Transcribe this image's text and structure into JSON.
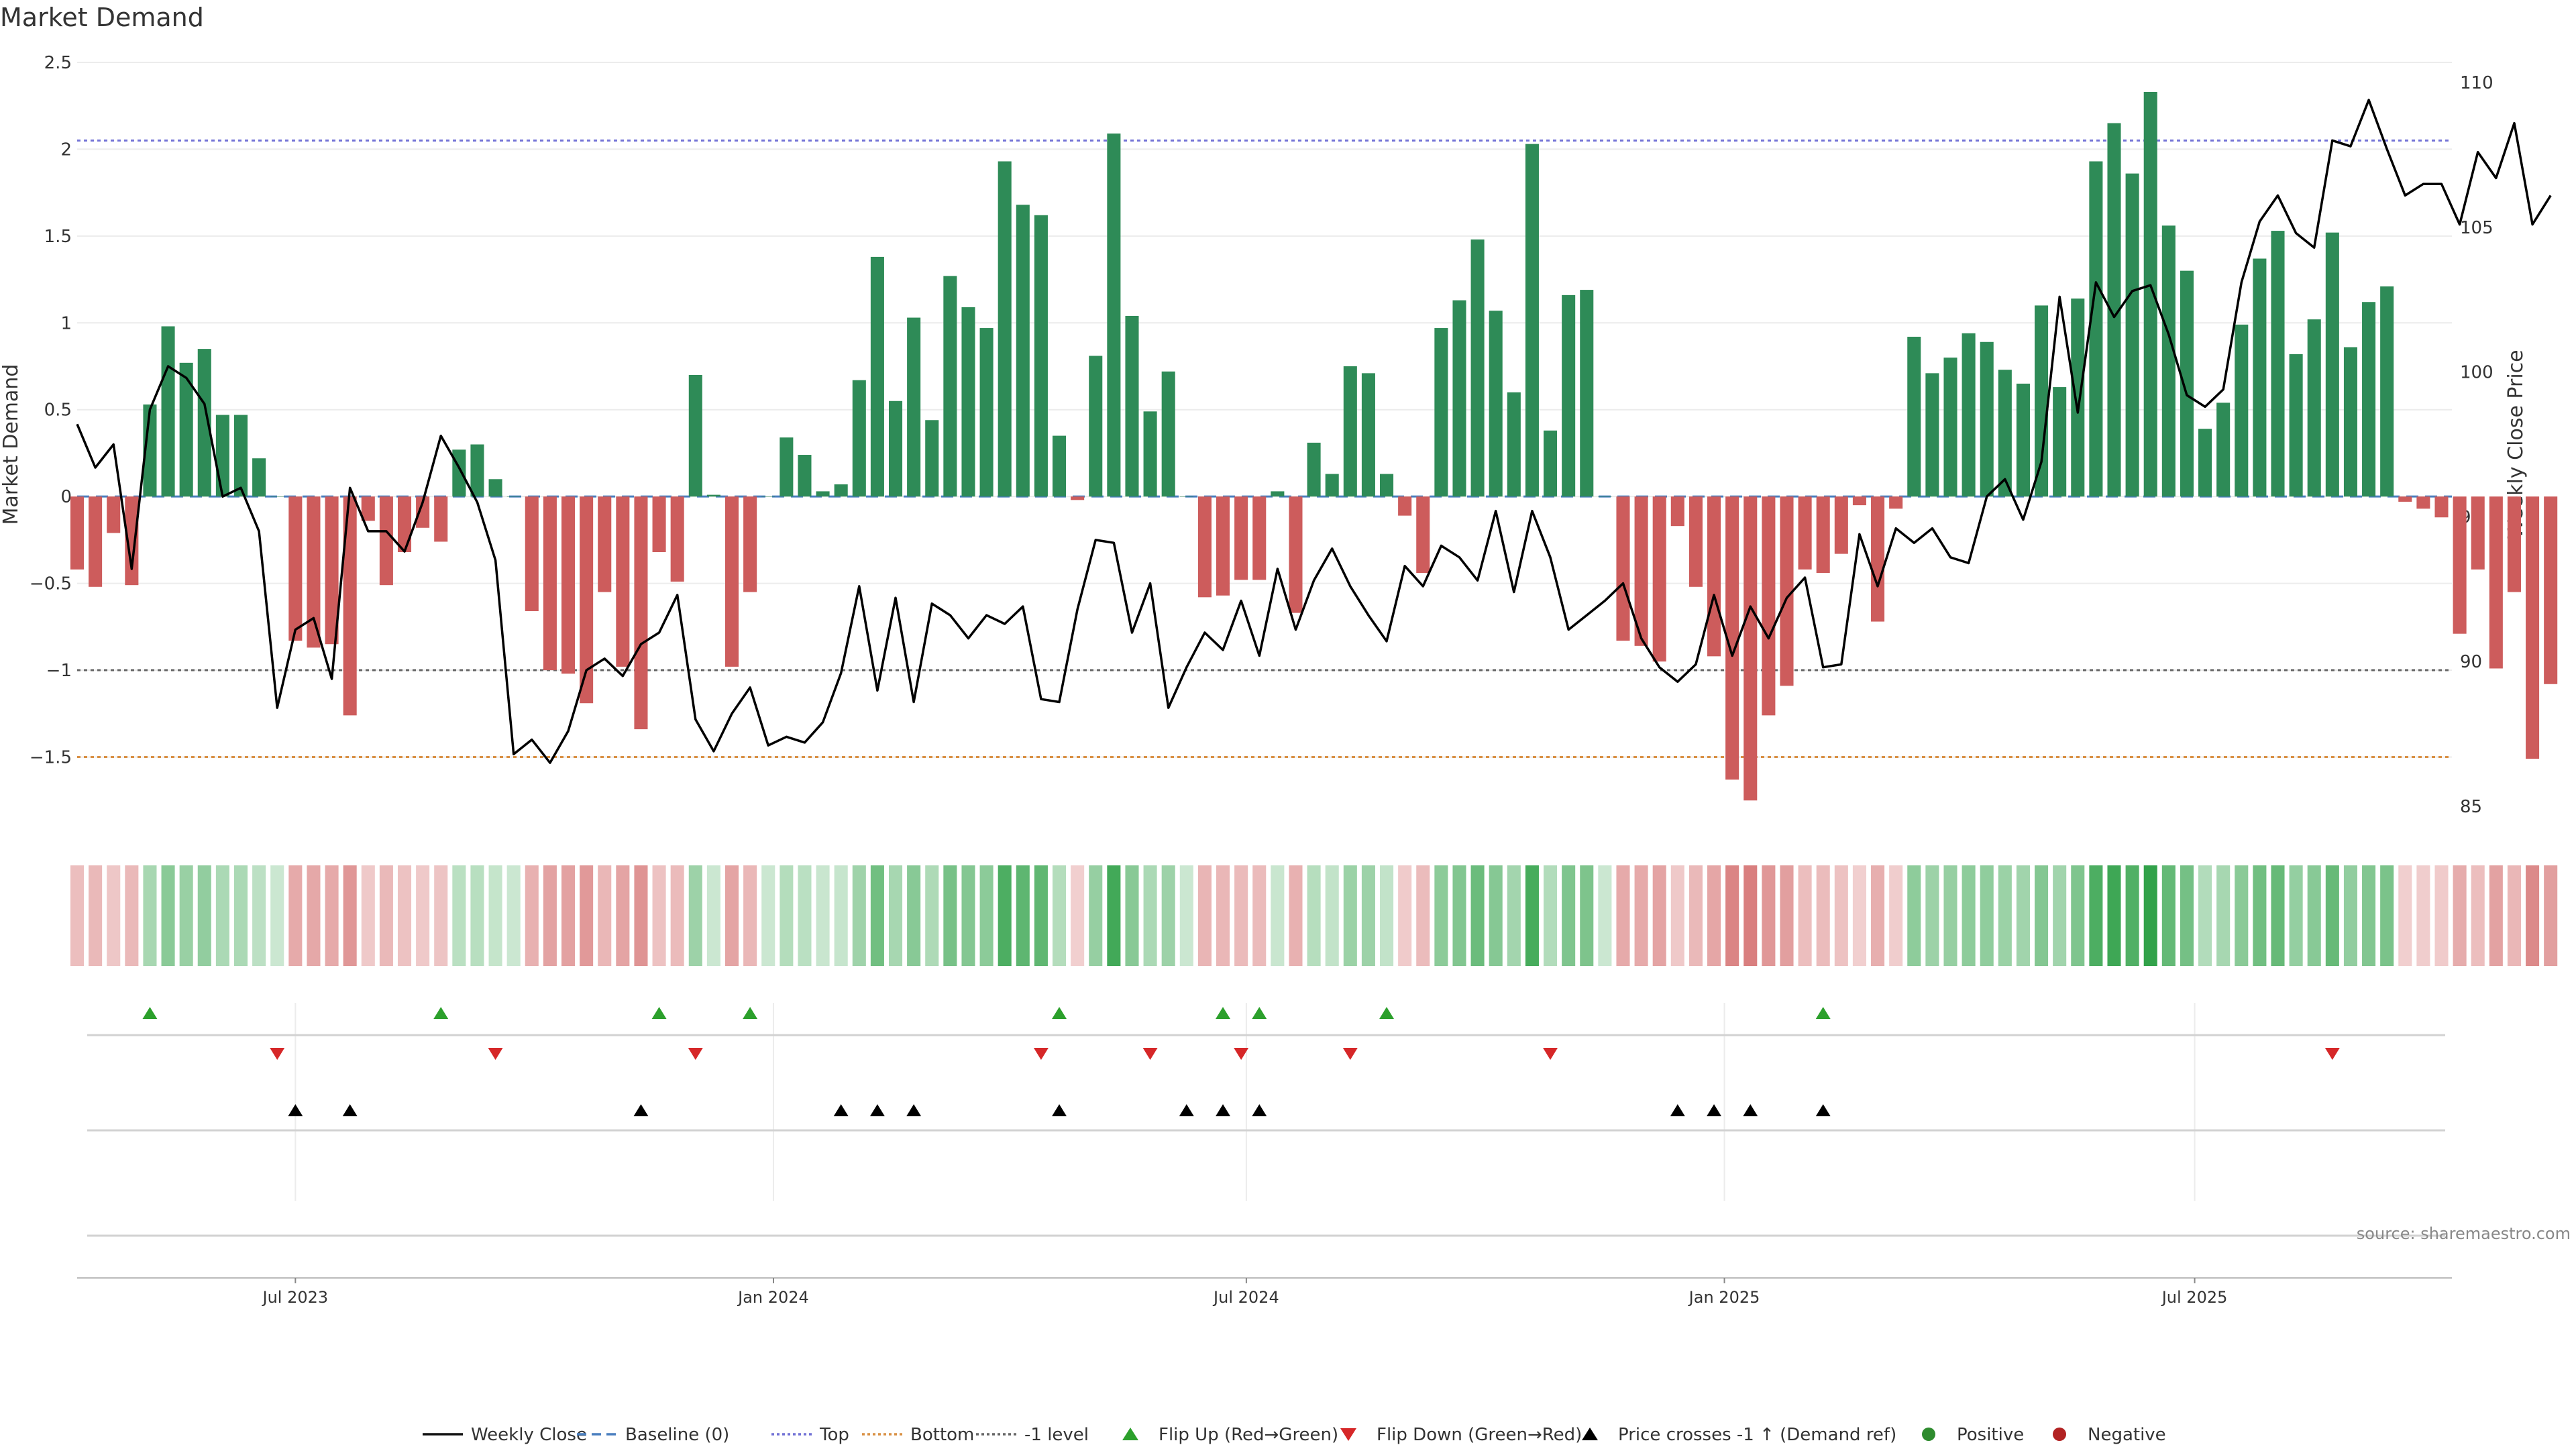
{
  "title": "Market Demand",
  "source": "source: sharemaestro.com",
  "chart_data": {
    "type": "bar",
    "title": "Market Demand",
    "ylabel": "Market Demand",
    "y2label": "Weekly Close Price",
    "ylim": [
      -1.95,
      2.55
    ],
    "y2lim": [
      84,
      111
    ],
    "yticks": [
      2.5,
      2,
      1.5,
      1,
      0.5,
      0,
      -0.5,
      -1,
      -1.5
    ],
    "ytick_labels": [
      "2.5",
      "2",
      "1.5",
      "1",
      "0.5",
      "0",
      "−0.5",
      "−1",
      "−1.5"
    ],
    "y2ticks": [
      110,
      105,
      100,
      95,
      90,
      85
    ],
    "x_start": "2023-04-08",
    "x_end": "2025-10-08",
    "xticks": [
      {
        "date": "2023-07-01",
        "label": "Jul 2023"
      },
      {
        "date": "2024-01-01",
        "label": "Jan 2024"
      },
      {
        "date": "2024-07-01",
        "label": "Jul 2024"
      },
      {
        "date": "2025-01-01",
        "label": "Jan 2025"
      },
      {
        "date": "2025-07-01",
        "label": "Jul 2025"
      }
    ],
    "first_week": "2023-04-08",
    "reference_lines": [
      {
        "name": "Top",
        "value": 2.05,
        "color": "#7272d6"
      },
      {
        "name": "-1 level",
        "value": -1.0,
        "color": "#666666"
      },
      {
        "name": "Bottom",
        "value": -1.5,
        "color": "#d99044"
      },
      {
        "name": "Baseline (0)",
        "value": 0,
        "color": "#4a7fbf"
      }
    ],
    "demand": [
      -0.42,
      -0.52,
      -0.21,
      -0.51,
      0.53,
      0.98,
      0.77,
      0.85,
      0.47,
      0.47,
      0.22,
      0.0,
      -0.83,
      -0.87,
      -0.85,
      -1.26,
      -0.14,
      -0.51,
      -0.32,
      -0.18,
      -0.26,
      0.27,
      0.3,
      0.1,
      0.0,
      -0.66,
      -1.0,
      -1.02,
      -1.19,
      -0.55,
      -0.98,
      -1.34,
      -0.32,
      -0.49,
      0.7,
      0.01,
      -0.98,
      -0.55,
      0.0,
      0.34,
      0.24,
      0.03,
      0.07,
      0.67,
      1.38,
      0.55,
      1.03,
      0.44,
      1.27,
      1.09,
      0.97,
      1.93,
      1.68,
      1.62,
      0.35,
      -0.02,
      0.81,
      2.09,
      1.04,
      0.49,
      0.72,
      0.0,
      -0.58,
      -0.57,
      -0.48,
      -0.48,
      0.03,
      -0.67,
      0.31,
      0.13,
      0.75,
      0.71,
      0.13,
      -0.11,
      -0.44,
      0.97,
      1.13,
      1.48,
      1.07,
      0.6,
      2.03,
      0.38,
      1.16,
      1.19,
      0.0,
      -0.83,
      -0.86,
      -0.95,
      -0.17,
      -0.52,
      -0.92,
      -1.63,
      -1.75,
      -1.26,
      -1.09,
      -0.42,
      -0.44,
      -0.33,
      -0.05,
      -0.72,
      -0.07,
      0.92,
      0.71,
      0.8,
      0.94,
      0.89,
      0.73,
      0.65,
      1.1,
      0.63,
      1.14,
      1.93,
      2.15,
      1.86,
      2.33,
      1.56,
      1.3,
      0.39,
      0.54,
      0.99,
      1.37,
      1.53,
      0.82,
      1.02,
      1.52,
      0.86,
      1.12,
      1.21,
      -0.03,
      -0.07,
      -0.12,
      -0.79,
      -0.42,
      -0.99,
      -0.55,
      -1.51,
      -1.08
    ],
    "close": [
      98.2,
      96.7,
      97.5,
      93.2,
      98.7,
      100.2,
      99.8,
      98.9,
      95.7,
      96.0,
      94.5,
      88.4,
      91.1,
      91.5,
      89.4,
      96.0,
      94.5,
      94.5,
      93.8,
      95.5,
      97.8,
      96.7,
      95.5,
      93.5,
      86.8,
      87.3,
      86.5,
      87.6,
      89.7,
      90.1,
      89.5,
      90.6,
      91.0,
      92.3,
      88.0,
      86.9,
      88.2,
      89.1,
      87.1,
      87.4,
      87.2,
      87.9,
      89.6,
      92.6,
      89.0,
      92.2,
      88.6,
      92.0,
      91.6,
      90.8,
      91.6,
      91.3,
      91.9,
      88.7,
      88.6,
      91.8,
      94.2,
      94.1,
      91.0,
      92.7,
      88.4,
      89.8,
      91.0,
      90.4,
      92.1,
      90.2,
      93.2,
      91.1,
      92.8,
      93.9,
      92.6,
      91.6,
      90.7,
      93.3,
      92.6,
      94.0,
      93.6,
      92.8,
      95.2,
      92.4,
      95.2,
      93.6,
      91.1,
      91.6,
      92.1,
      92.7,
      90.8,
      89.8,
      89.3,
      89.9,
      92.3,
      90.2,
      91.9,
      90.8,
      92.2,
      92.9,
      89.8,
      89.9,
      94.4,
      92.6,
      94.6,
      94.1,
      94.6,
      93.6,
      93.4,
      95.7,
      96.3,
      94.9,
      96.9,
      102.6,
      98.6,
      103.1,
      101.9,
      102.8,
      103.0,
      101.3,
      99.2,
      98.8,
      99.4,
      103.1,
      105.2,
      106.1,
      104.8,
      104.3,
      108.0,
      107.8,
      109.4,
      107.7,
      106.1,
      106.5,
      106.5,
      105.1,
      107.6,
      106.7,
      108.6,
      105.1,
      106.1
    ],
    "flip_up_weeks": [
      4,
      20,
      32,
      37,
      54,
      63,
      65,
      72,
      96
    ],
    "flip_down_weeks": [
      11,
      23,
      34,
      53,
      59,
      64,
      70,
      81,
      124
    ],
    "price_cross_weeks": [
      12,
      15,
      31,
      42,
      44,
      46,
      54,
      61,
      63,
      65,
      88,
      90,
      92,
      96
    ],
    "series": [
      {
        "name": "Weekly Close",
        "type": "line",
        "color": "#000000"
      },
      {
        "name": "Market Demand",
        "type": "bar",
        "positive_color": "#2e8b57",
        "negative_color": "#cd5c5c"
      }
    ],
    "legend_position": "bottom",
    "legend": [
      {
        "label": "Weekly Close",
        "kind": "line",
        "color": "#111111",
        "dash": ""
      },
      {
        "label": "Baseline (0)",
        "kind": "line",
        "color": "#4a7fbf",
        "dash": "14 8"
      },
      {
        "label": "Top",
        "kind": "line",
        "color": "#7272d6",
        "dash": "4 4"
      },
      {
        "label": "Bottom",
        "kind": "line",
        "color": "#d99044",
        "dash": "4 4"
      },
      {
        "label": "-1 level",
        "kind": "line",
        "color": "#666666",
        "dash": "4 4"
      },
      {
        "label": "Flip Up (Red→Green)",
        "kind": "tri-up",
        "color": "#2ca02c"
      },
      {
        "label": "Flip Down (Green→Red)",
        "kind": "tri-down",
        "color": "#d62728"
      },
      {
        "label": "Price crosses -1 ↑ (Demand ref)",
        "kind": "tri-up",
        "color": "#000000"
      },
      {
        "label": "Positive",
        "kind": "dot",
        "color": "#2e8b2e"
      },
      {
        "label": "Negative",
        "kind": "dot",
        "color": "#b22222"
      }
    ]
  }
}
